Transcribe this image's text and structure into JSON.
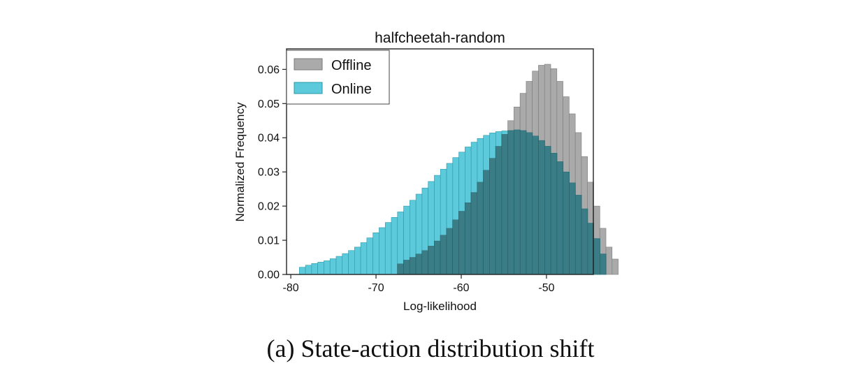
{
  "figure": {
    "caption": "(a) State-action distribution shift"
  },
  "chart_data": {
    "type": "bar",
    "subtype": "overlapping-histogram",
    "title": "halfcheetah-random",
    "xlabel": "Log-likelihood",
    "ylabel": "Normalized Frequency",
    "xlim": [
      -80.5,
      -44.5
    ],
    "ylim": [
      0,
      0.066
    ],
    "xticks": [
      -80,
      -70,
      -60,
      -50
    ],
    "xtick_labels": [
      "-80",
      "-70",
      "-60",
      "-50"
    ],
    "yticks": [
      0,
      0.01,
      0.02,
      0.03,
      0.04,
      0.05,
      0.06
    ],
    "ytick_labels": [
      "0.00",
      "0.01",
      "0.02",
      "0.03",
      "0.04",
      "0.05",
      "0.06"
    ],
    "legend": {
      "position": "top-left",
      "entries": [
        "Offline",
        "Online"
      ]
    },
    "bin_width": 0.72,
    "colors": {
      "offline": "#aaaaaa",
      "online": "#5ccada",
      "overlap": "#3a7d86",
      "edge_offline": "#7a7a7a",
      "edge_online": "#2a98ab",
      "axis": "#222222"
    },
    "series": [
      {
        "name": "Offline",
        "bin_start": -67.5,
        "values": [
          0.0031,
          0.0042,
          0.005,
          0.006,
          0.007,
          0.0083,
          0.0098,
          0.0115,
          0.0135,
          0.016,
          0.0185,
          0.021,
          0.024,
          0.027,
          0.0305,
          0.034,
          0.0375,
          0.041,
          0.045,
          0.049,
          0.053,
          0.0565,
          0.0595,
          0.0612,
          0.0615,
          0.0602,
          0.0565,
          0.052,
          0.047,
          0.0415,
          0.0345,
          0.027,
          0.02,
          0.0135,
          0.008,
          0.0045
        ]
      },
      {
        "name": "Online",
        "bin_start": -79.0,
        "values": [
          0.0021,
          0.0027,
          0.0032,
          0.0036,
          0.004,
          0.0046,
          0.0053,
          0.0061,
          0.007,
          0.008,
          0.0093,
          0.0107,
          0.0122,
          0.0137,
          0.0152,
          0.0167,
          0.0183,
          0.02,
          0.0217,
          0.0235,
          0.0253,
          0.0272,
          0.029,
          0.0308,
          0.0325,
          0.0342,
          0.0358,
          0.0373,
          0.0387,
          0.0398,
          0.0407,
          0.0414,
          0.0418,
          0.042,
          0.0421,
          0.0423,
          0.0421,
          0.0415,
          0.0405,
          0.0392,
          0.0375,
          0.0355,
          0.033,
          0.03,
          0.0268,
          0.0232,
          0.0192,
          0.015,
          0.0105,
          0.006
        ]
      }
    ]
  }
}
